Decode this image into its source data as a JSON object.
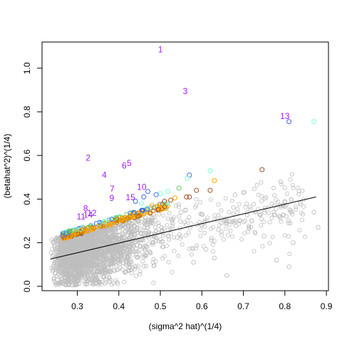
{
  "chart_data": {
    "type": "scatter",
    "title": "",
    "xlabel": "(sigma^2 hat)^(1/4)",
    "ylabel": "(betahat^2)^(1/4)",
    "xlim": [
      0.215,
      0.905
    ],
    "ylim": [
      -0.02,
      1.12
    ],
    "xticks": [
      "0.3",
      "0.4",
      "0.5",
      "0.6",
      "0.7",
      "0.8",
      "0.9"
    ],
    "xtick_values": [
      0.3,
      0.4,
      0.5,
      0.6,
      0.7,
      0.8,
      0.9
    ],
    "yticks": [
      "0.0",
      "0.2",
      "0.4",
      "0.6",
      "0.8",
      "1.0"
    ],
    "ytick_values": [
      0.0,
      0.2,
      0.4,
      0.6,
      0.8,
      1.0
    ],
    "grid": false,
    "colors": {
      "background": "#bebebe",
      "orange": "#ffa500",
      "darkorange": "#cd8500",
      "brown": "#a0522d",
      "green": "#7fffd4",
      "lightgreen": "#66cd66",
      "blue": "#4169e1",
      "label": "#9f20f0",
      "line": "#000000"
    },
    "fit_line": {
      "x": [
        0.235,
        0.875
      ],
      "y": [
        0.125,
        0.41
      ]
    },
    "numbered_points": [
      {
        "label": "1",
        "x": 0.5,
        "y": 1.085
      },
      {
        "label": "3",
        "x": 0.56,
        "y": 0.895
      },
      {
        "label": "13",
        "x": 0.8,
        "y": 0.78
      },
      {
        "label": "2",
        "x": 0.326,
        "y": 0.59
      },
      {
        "label": "5",
        "x": 0.425,
        "y": 0.565
      },
      {
        "label": "6",
        "x": 0.413,
        "y": 0.553
      },
      {
        "label": "4",
        "x": 0.365,
        "y": 0.51
      },
      {
        "label": "10",
        "x": 0.455,
        "y": 0.455
      },
      {
        "label": "7",
        "x": 0.384,
        "y": 0.447
      },
      {
        "label": "15",
        "x": 0.428,
        "y": 0.408
      },
      {
        "label": "9",
        "x": 0.383,
        "y": 0.405
      },
      {
        "label": "8",
        "x": 0.32,
        "y": 0.357
      },
      {
        "label": "12",
        "x": 0.335,
        "y": 0.336
      },
      {
        "label": "14",
        "x": 0.326,
        "y": 0.328
      },
      {
        "label": "11",
        "x": 0.309,
        "y": 0.32
      }
    ],
    "outlier_points": [
      {
        "x": 0.87,
        "y": 0.755,
        "color": "green"
      },
      {
        "x": 0.81,
        "y": 0.755,
        "color": "blue"
      },
      {
        "x": 0.745,
        "y": 0.535,
        "color": "brown"
      },
      {
        "x": 0.62,
        "y": 0.53,
        "color": "green"
      },
      {
        "x": 0.57,
        "y": 0.51,
        "color": "blue"
      },
      {
        "x": 0.565,
        "y": 0.495,
        "color": "green"
      },
      {
        "x": 0.63,
        "y": 0.485,
        "color": "orange"
      },
      {
        "x": 0.545,
        "y": 0.45,
        "color": "lightgreen"
      },
      {
        "x": 0.62,
        "y": 0.44,
        "color": "brown"
      },
      {
        "x": 0.587,
        "y": 0.44,
        "color": "brown"
      },
      {
        "x": 0.518,
        "y": 0.435,
        "color": "green"
      },
      {
        "x": 0.47,
        "y": 0.435,
        "color": "blue"
      },
      {
        "x": 0.5,
        "y": 0.425,
        "color": "green"
      },
      {
        "x": 0.49,
        "y": 0.42,
        "color": "blue"
      },
      {
        "x": 0.57,
        "y": 0.41,
        "color": "brown"
      },
      {
        "x": 0.563,
        "y": 0.41,
        "color": "brown"
      },
      {
        "x": 0.46,
        "y": 0.41,
        "color": "blue"
      },
      {
        "x": 0.535,
        "y": 0.405,
        "color": "orange"
      },
      {
        "x": 0.525,
        "y": 0.395,
        "color": "brown"
      },
      {
        "x": 0.51,
        "y": 0.39,
        "color": "brown"
      },
      {
        "x": 0.44,
        "y": 0.39,
        "color": "blue"
      },
      {
        "x": 0.455,
        "y": 0.38,
        "color": "green"
      },
      {
        "x": 0.5,
        "y": 0.375,
        "color": "orange"
      },
      {
        "x": 0.48,
        "y": 0.37,
        "color": "orange"
      },
      {
        "x": 0.265,
        "y": 0.232,
        "color": "blue"
      }
    ],
    "highlight_band": {
      "x": [
        0.265,
        0.52
      ],
      "y": [
        0.225,
        0.37
      ]
    },
    "background_points_note": ""
  }
}
